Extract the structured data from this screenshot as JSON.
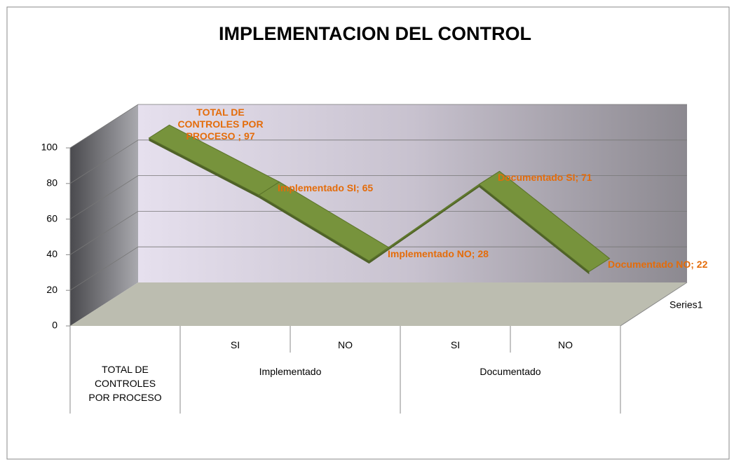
{
  "chart_data": {
    "type": "line3d",
    "title": "IMPLEMENTACION DEL CONTROL",
    "categories": [
      "TOTAL  DE CONTROLES POR PROCESO",
      "SI",
      "NO",
      "SI",
      "NO"
    ],
    "category_groups": [
      {
        "label": "Implementado",
        "span": [
          1,
          2
        ]
      },
      {
        "label": "Documentado",
        "span": [
          3,
          4
        ]
      }
    ],
    "series": [
      {
        "name": "Series1",
        "color": "#77933c",
        "values": [
          97,
          65,
          28,
          71,
          22
        ],
        "value_labels": [
          "TOTAL  DE CONTROLES POR PROCESO ; 97",
          "Implementado  SI; 65",
          "Implementado  NO; 28",
          "Documentado SI; 71",
          "Documentado NO; 22"
        ]
      }
    ],
    "ylim": [
      0,
      100
    ],
    "yticks": [
      0,
      20,
      40,
      60,
      80,
      100
    ],
    "grid": true,
    "label_color": "#e46c0a"
  }
}
